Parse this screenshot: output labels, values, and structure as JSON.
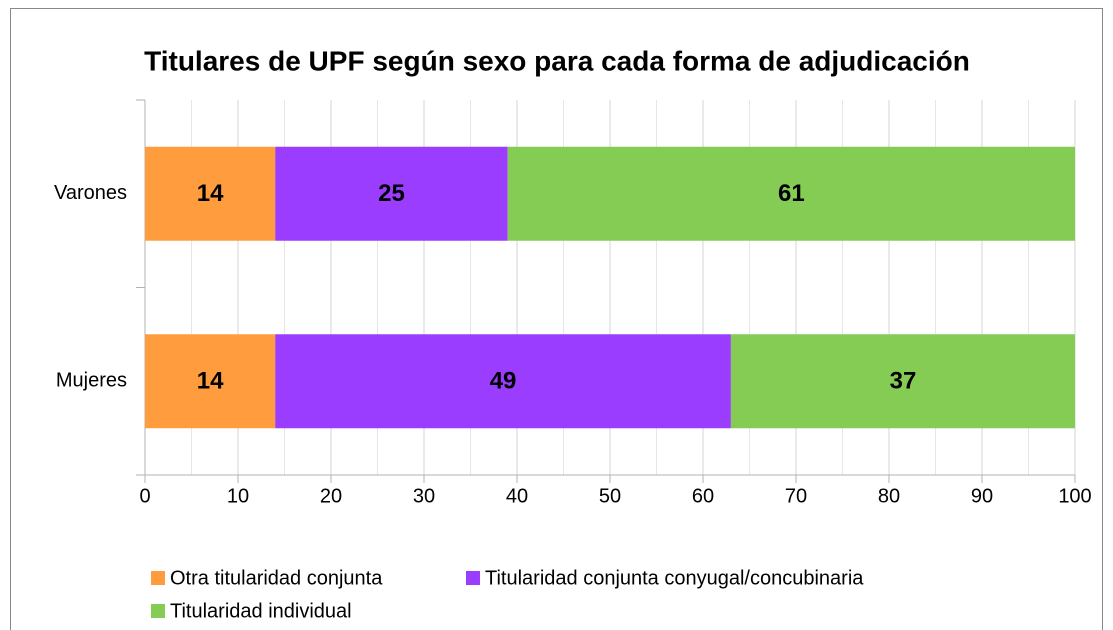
{
  "chart_data": {
    "type": "stacked_barh",
    "title": "Titulares de UPF según sexo para cada forma de adjudicación",
    "categories": [
      "Varones",
      "Mujeres"
    ],
    "series": [
      {
        "name": "Otra titularidad conjunta",
        "color": "#ff9d3e",
        "values": [
          14,
          14
        ]
      },
      {
        "name": "Titularidad conjunta conyugal/concubinaria",
        "color": "#9a3dff",
        "values": [
          25,
          49
        ]
      },
      {
        "name": "Titularidad individual",
        "color": "#85cc55",
        "values": [
          61,
          37
        ]
      }
    ],
    "xlim": [
      0,
      100
    ],
    "xticks": [
      0,
      10,
      20,
      30,
      40,
      50,
      60,
      70,
      80,
      90,
      100
    ],
    "grid": true,
    "legend": "bottom"
  }
}
